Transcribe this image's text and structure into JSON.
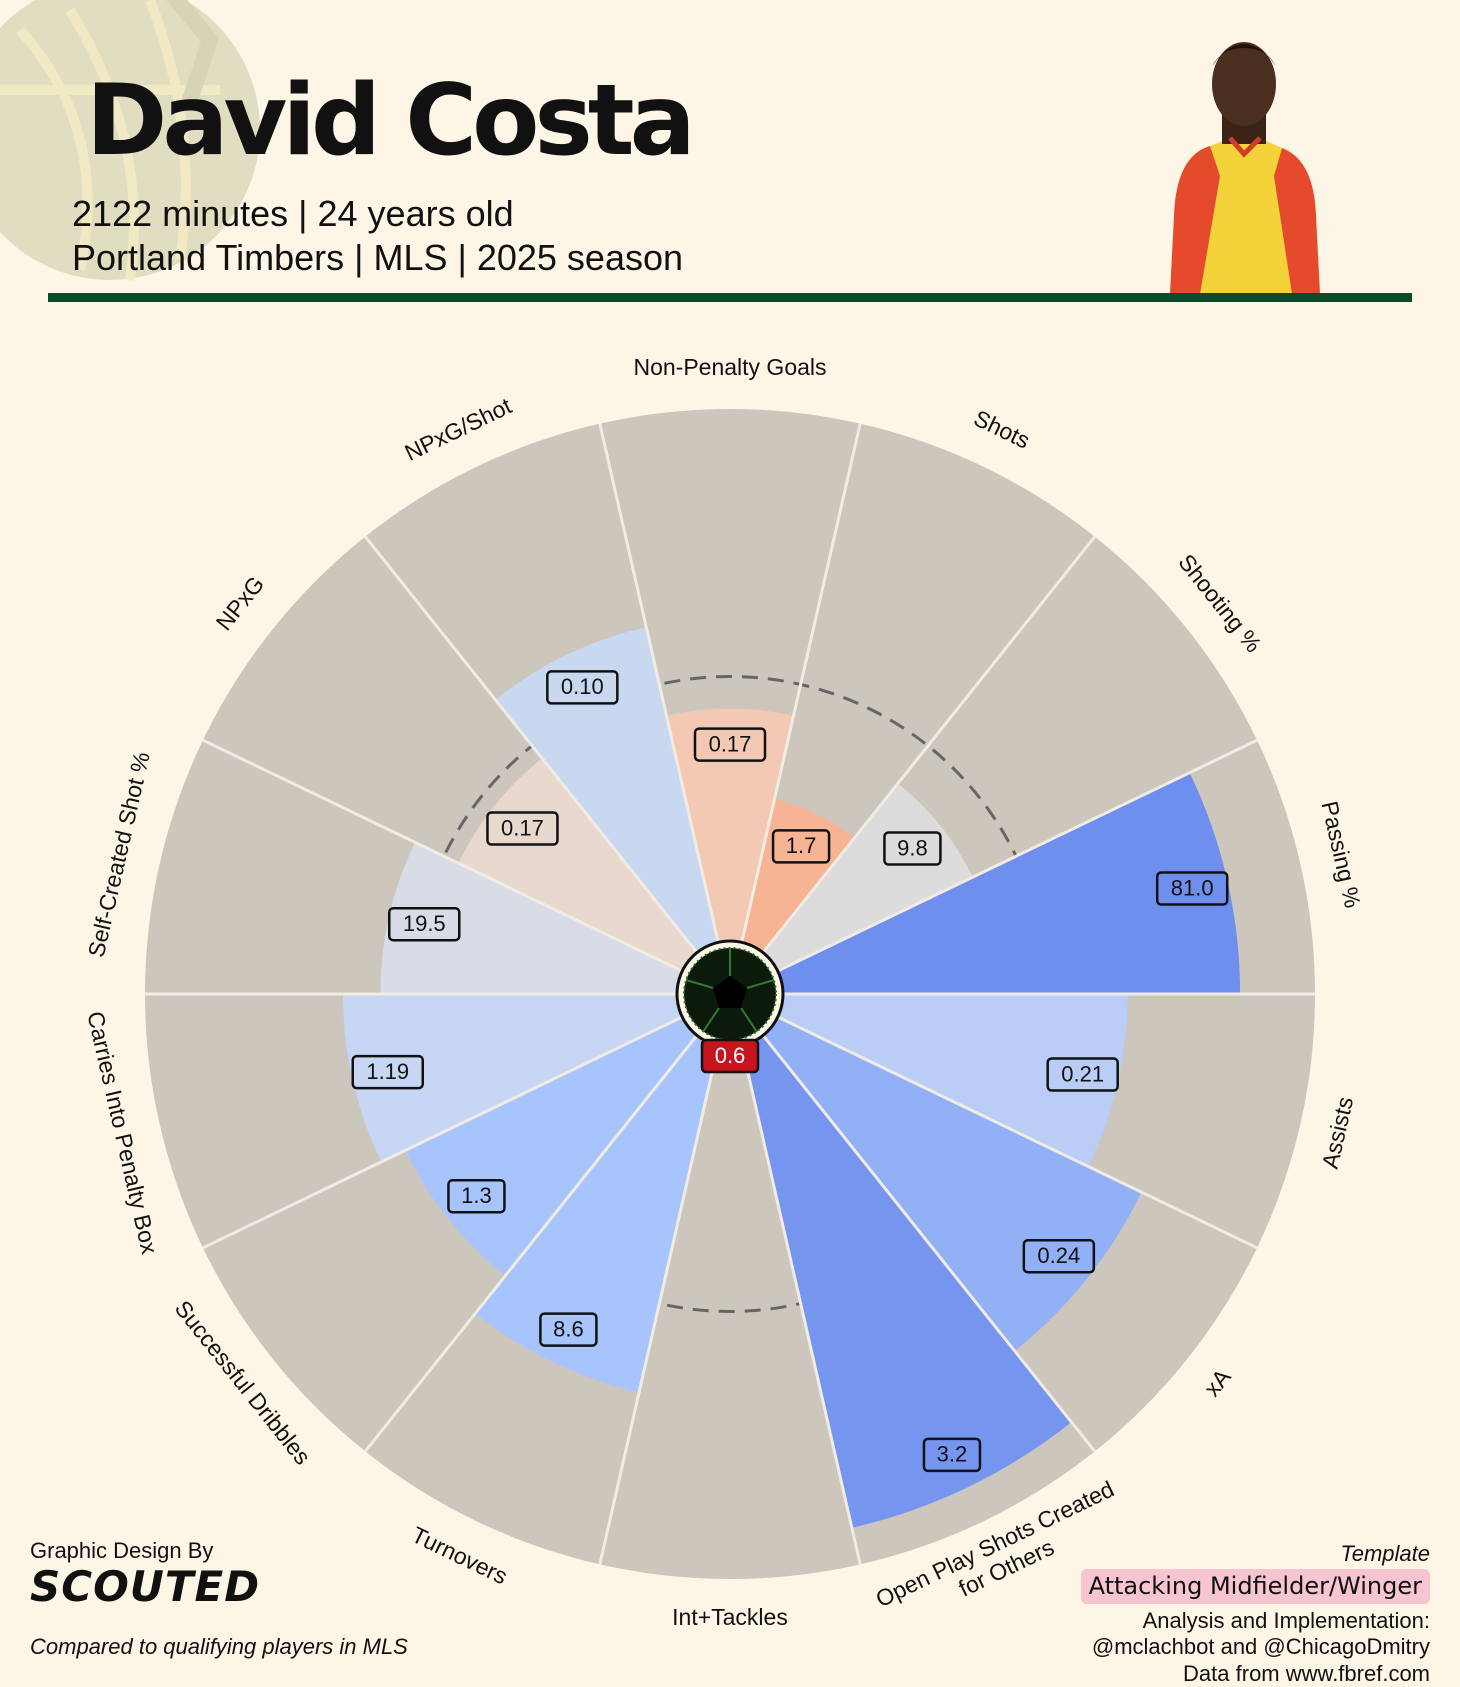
{
  "header": {
    "player_name": "David Costa",
    "subtitle_line1": "2122 minutes | 24 years old",
    "subtitle_line2": "Portland Timbers | MLS | 2025 season",
    "rule_color": "#0b4a2a"
  },
  "footer": {
    "credit_label": "Graphic Design By",
    "brand": "SCOUTED",
    "comparison_note": "Compared to qualifying players in MLS",
    "template_label": "Template",
    "template_value": "Attacking Midfielder/Winger",
    "analysis_line1": "Analysis and Implementation:",
    "analysis_line2": "@mclachbot and @ChicagoDmitry",
    "data_source": "Data from www.fbref.com"
  },
  "chart_data": {
    "type": "polar-bar",
    "direction": "clockwise from top",
    "value_scale": "percentile rank (0-100), bar length",
    "categories": [
      "Non-Penalty Goals",
      "Shots",
      "Shooting %",
      "Passing %",
      "Assists",
      "xA",
      "Open Play Shots Created for Others",
      "Int+Tackles",
      "Turnovers",
      "Successful Dribbles",
      "Carries Into Penalty Box",
      "Self-Created Shot %",
      "NPxG",
      "NPxG/Shot"
    ],
    "series": [
      {
        "value_labels": [
          "0.17",
          "1.7",
          "9.8",
          "81.0",
          "0.21",
          "0.24",
          "3.2",
          "0.6",
          "8.6",
          "1.3",
          "1.19",
          "19.5",
          "0.17",
          "0.10"
        ],
        "percentiles": [
          44,
          28,
          41,
          86,
          65,
          76,
          93,
          3,
          67,
          58,
          63,
          56,
          47,
          61
        ],
        "colors": [
          "#f4c9b4",
          "#f6b494",
          "#dcdcdc",
          "#6f8fef",
          "#b9cdf6",
          "#92b0f6",
          "#7595ef",
          "#c8141f",
          "#a7c5fc",
          "#a7c5fc",
          "#c7d6f2",
          "#d8dce6",
          "#e8d8ce",
          "#c9d8f1"
        ],
        "label_box_fill": [
          "#f4c9b4",
          "#f6b494",
          "#dcdcdc",
          "#6f8fef",
          "#b9cdf6",
          "#92b0f6",
          "#7595ef",
          "#c8141f",
          "#a7c5fc",
          "#a7c5fc",
          "#c7d6f2",
          "#d8dce6",
          "#e8d8ce",
          "#c9d8f1"
        ],
        "label_text_color": [
          "#111",
          "#111",
          "#111",
          "#111",
          "#111",
          "#111",
          "#111",
          "#ffffff",
          "#111",
          "#111",
          "#111",
          "#111",
          "#111",
          "#111"
        ]
      }
    ],
    "background_wedge_color": "#ccc6bd",
    "reference_circle": {
      "percentile": 50,
      "style": "dashed",
      "color": "#666666"
    },
    "center_icon": "soccer-ball-icon"
  }
}
